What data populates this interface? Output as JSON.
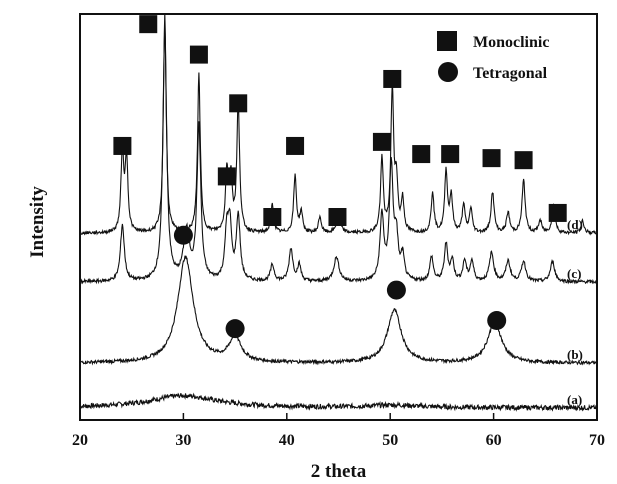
{
  "chart_data": {
    "type": "line",
    "xlabel": "2 theta",
    "ylabel": "Intensity",
    "xlim": [
      20,
      70
    ],
    "x_ticks": [
      20,
      30,
      40,
      50,
      60,
      70
    ],
    "y_ticks_shown": false,
    "grid": false,
    "legend": {
      "position": "top-right",
      "entries": [
        {
          "marker": "square",
          "label": "Monoclinic"
        },
        {
          "marker": "circle",
          "label": "Tetragonal"
        }
      ]
    },
    "series": [
      {
        "name": "(a)",
        "baseline": 0.03,
        "noise": 0.006,
        "peaks": [
          {
            "x": 30.0,
            "h": 0.03,
            "w": 4.0
          },
          {
            "x": 50.3,
            "h": 0.006,
            "w": 3.0
          }
        ]
      },
      {
        "name": "(b)",
        "baseline": 0.14,
        "noise": 0.004,
        "peaks": [
          {
            "x": 30.2,
            "h": 0.26,
            "w": 0.9
          },
          {
            "x": 35.0,
            "h": 0.06,
            "w": 0.7
          },
          {
            "x": 50.4,
            "h": 0.13,
            "w": 0.8
          },
          {
            "x": 60.1,
            "h": 0.1,
            "w": 0.8
          }
        ]
      },
      {
        "name": "(c)",
        "baseline": 0.34,
        "noise": 0.004,
        "peaks": [
          {
            "x": 24.1,
            "h": 0.14,
            "w": 0.22
          },
          {
            "x": 28.2,
            "h": 0.62,
            "w": 0.22
          },
          {
            "x": 30.3,
            "h": 0.12,
            "w": 0.35
          },
          {
            "x": 31.5,
            "h": 0.38,
            "w": 0.22
          },
          {
            "x": 34.2,
            "h": 0.12,
            "w": 0.22
          },
          {
            "x": 34.5,
            "h": 0.12,
            "w": 0.2
          },
          {
            "x": 35.3,
            "h": 0.16,
            "w": 0.22
          },
          {
            "x": 38.6,
            "h": 0.04,
            "w": 0.22
          },
          {
            "x": 40.4,
            "h": 0.08,
            "w": 0.22
          },
          {
            "x": 41.2,
            "h": 0.04,
            "w": 0.2
          },
          {
            "x": 44.8,
            "h": 0.06,
            "w": 0.3
          },
          {
            "x": 49.2,
            "h": 0.16,
            "w": 0.22
          },
          {
            "x": 50.1,
            "h": 0.28,
            "w": 0.22
          },
          {
            "x": 50.6,
            "h": 0.1,
            "w": 0.2
          },
          {
            "x": 51.2,
            "h": 0.06,
            "w": 0.2
          },
          {
            "x": 54.0,
            "h": 0.06,
            "w": 0.2
          },
          {
            "x": 55.4,
            "h": 0.09,
            "w": 0.2
          },
          {
            "x": 56.0,
            "h": 0.05,
            "w": 0.2
          },
          {
            "x": 57.2,
            "h": 0.05,
            "w": 0.2
          },
          {
            "x": 57.9,
            "h": 0.05,
            "w": 0.2
          },
          {
            "x": 59.8,
            "h": 0.07,
            "w": 0.25
          },
          {
            "x": 61.4,
            "h": 0.05,
            "w": 0.25
          },
          {
            "x": 62.9,
            "h": 0.05,
            "w": 0.25
          },
          {
            "x": 65.7,
            "h": 0.05,
            "w": 0.25
          }
        ]
      },
      {
        "name": "(d)",
        "baseline": 0.46,
        "noise": 0.004,
        "peaks": [
          {
            "x": 24.1,
            "h": 0.2,
            "w": 0.16
          },
          {
            "x": 24.5,
            "h": 0.18,
            "w": 0.16
          },
          {
            "x": 28.2,
            "h": 0.54,
            "w": 0.16
          },
          {
            "x": 31.5,
            "h": 0.39,
            "w": 0.16
          },
          {
            "x": 34.2,
            "h": 0.15,
            "w": 0.16
          },
          {
            "x": 34.6,
            "h": 0.13,
            "w": 0.16
          },
          {
            "x": 35.3,
            "h": 0.32,
            "w": 0.16
          },
          {
            "x": 38.6,
            "h": 0.07,
            "w": 0.16
          },
          {
            "x": 40.8,
            "h": 0.14,
            "w": 0.16
          },
          {
            "x": 41.4,
            "h": 0.05,
            "w": 0.16
          },
          {
            "x": 43.2,
            "h": 0.04,
            "w": 0.16
          },
          {
            "x": 45.0,
            "h": 0.05,
            "w": 0.2
          },
          {
            "x": 49.2,
            "h": 0.18,
            "w": 0.16
          },
          {
            "x": 50.2,
            "h": 0.35,
            "w": 0.16
          },
          {
            "x": 50.6,
            "h": 0.12,
            "w": 0.16
          },
          {
            "x": 51.2,
            "h": 0.08,
            "w": 0.16
          },
          {
            "x": 54.1,
            "h": 0.1,
            "w": 0.16
          },
          {
            "x": 55.4,
            "h": 0.15,
            "w": 0.16
          },
          {
            "x": 55.9,
            "h": 0.09,
            "w": 0.16
          },
          {
            "x": 57.1,
            "h": 0.07,
            "w": 0.16
          },
          {
            "x": 57.8,
            "h": 0.06,
            "w": 0.16
          },
          {
            "x": 59.9,
            "h": 0.1,
            "w": 0.18
          },
          {
            "x": 61.4,
            "h": 0.05,
            "w": 0.18
          },
          {
            "x": 62.9,
            "h": 0.13,
            "w": 0.18
          },
          {
            "x": 64.5,
            "h": 0.03,
            "w": 0.18
          },
          {
            "x": 65.8,
            "h": 0.07,
            "w": 0.18
          },
          {
            "x": 68.6,
            "h": 0.03,
            "w": 0.18
          }
        ]
      }
    ],
    "markers": {
      "monoclinic_squares": [
        {
          "x": 24.1,
          "y": 0.675
        },
        {
          "x": 26.6,
          "y": 0.975
        },
        {
          "x": 31.5,
          "y": 0.9
        },
        {
          "x": 34.2,
          "y": 0.6
        },
        {
          "x": 35.3,
          "y": 0.78
        },
        {
          "x": 38.6,
          "y": 0.5
        },
        {
          "x": 40.8,
          "y": 0.675
        },
        {
          "x": 44.9,
          "y": 0.5
        },
        {
          "x": 49.2,
          "y": 0.685
        },
        {
          "x": 50.2,
          "y": 0.84
        },
        {
          "x": 53.0,
          "y": 0.655
        },
        {
          "x": 55.8,
          "y": 0.655
        },
        {
          "x": 59.8,
          "y": 0.645
        },
        {
          "x": 62.9,
          "y": 0.64
        },
        {
          "x": 66.2,
          "y": 0.51
        }
      ],
      "tetragonal_circles": [
        {
          "x": 30.0,
          "y": 0.455
        },
        {
          "x": 35.0,
          "y": 0.225
        },
        {
          "x": 50.6,
          "y": 0.32
        },
        {
          "x": 60.3,
          "y": 0.245
        }
      ]
    },
    "colors": {
      "line": "#111111",
      "marker": "#111111"
    }
  }
}
